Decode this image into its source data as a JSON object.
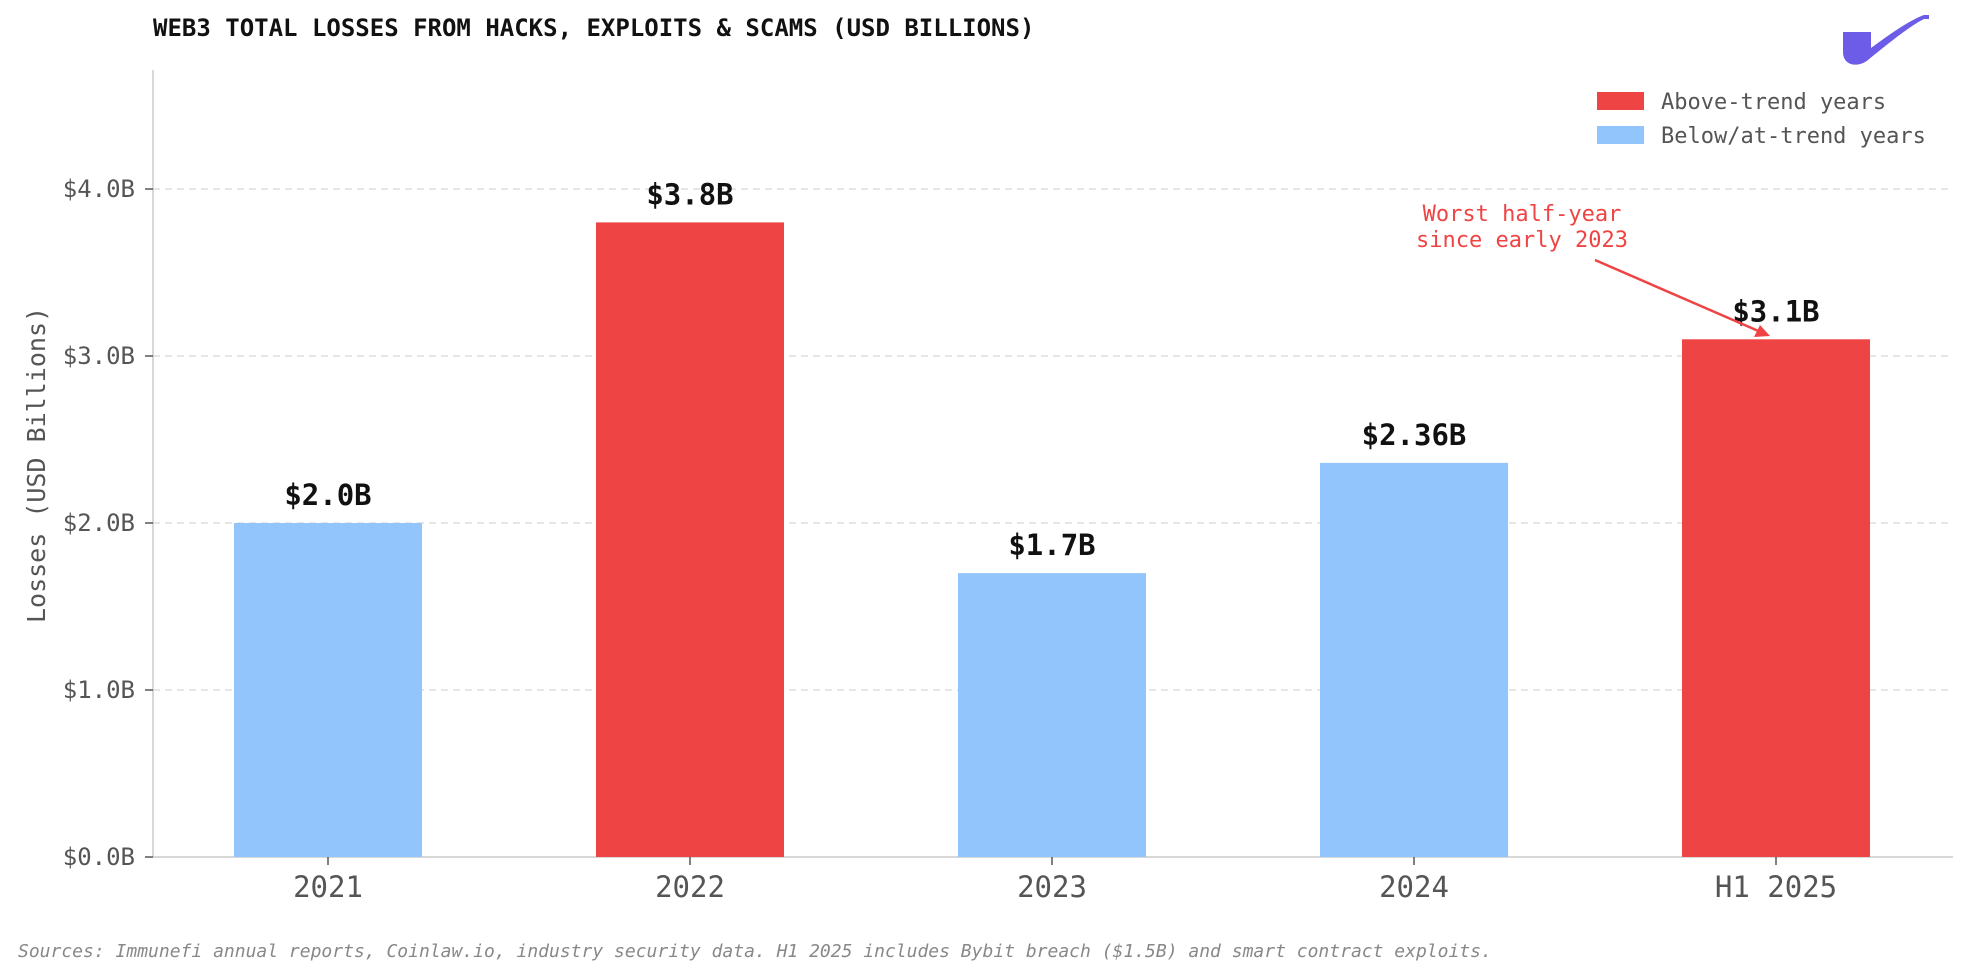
{
  "chart_data": {
    "type": "bar",
    "title": "WEB3 TOTAL LOSSES FROM HACKS, EXPLOITS & SCAMS (USD BILLIONS)",
    "xlabel": "",
    "ylabel": "Losses (USD Billions)",
    "categories": [
      "2021",
      "2022",
      "2023",
      "2024",
      "H1 2025"
    ],
    "values": [
      2.0,
      3.8,
      1.7,
      2.36,
      3.1
    ],
    "data_labels": [
      "$2.0B",
      "$3.8B",
      "$1.7B",
      "$2.36B",
      "$3.1B"
    ],
    "bar_groups": [
      "below",
      "above",
      "below",
      "below",
      "above"
    ],
    "ylim": [
      0,
      4.7
    ],
    "yticks": [
      0,
      1,
      2,
      3,
      4
    ],
    "ytick_labels": [
      "$0.0B",
      "$1.0B",
      "$2.0B",
      "$3.0B",
      "$4.0B"
    ],
    "grid": "horizontal dashed",
    "legend": {
      "placement": "top-right",
      "entries": [
        {
          "label": "Above-trend years",
          "group": "above"
        },
        {
          "label": "Below/at-trend years",
          "group": "below"
        }
      ]
    },
    "annotation": {
      "lines": [
        "Worst half-year",
        "since early 2023"
      ],
      "target_category": "H1 2025"
    },
    "footnote": "Sources: Immunefi annual reports, Coinlaw.io, industry security data. H1 2025 includes Bybit breach ($1.5B) and smart contract exploits."
  },
  "colors": {
    "above": "#ef4444",
    "below": "#93c5fd",
    "annotation": "#ef4444",
    "logo": "#6c5ce7"
  },
  "logo_icon": "checkmark-swoosh-logo"
}
